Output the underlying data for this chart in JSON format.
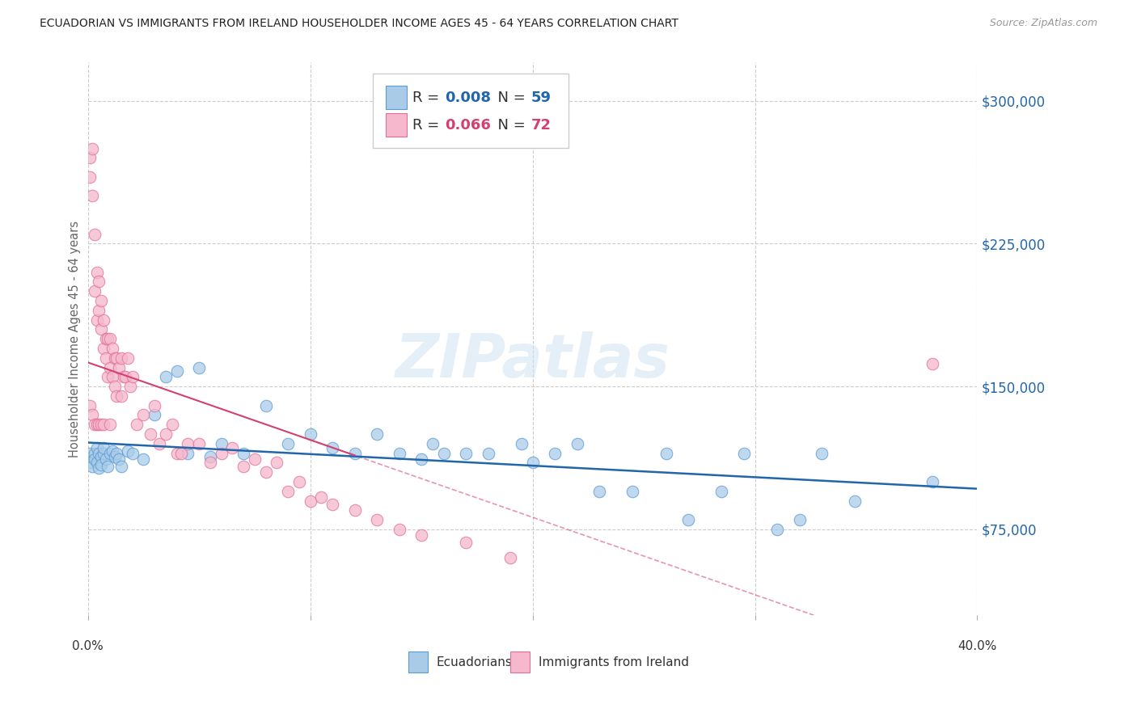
{
  "title": "ECUADORIAN VS IMMIGRANTS FROM IRELAND HOUSEHOLDER INCOME AGES 45 - 64 YEARS CORRELATION CHART",
  "source": "Source: ZipAtlas.com",
  "ylabel": "Householder Income Ages 45 - 64 years",
  "yticks": [
    75000,
    150000,
    225000,
    300000
  ],
  "ytick_labels": [
    "$75,000",
    "$150,000",
    "$225,000",
    "$300,000"
  ],
  "xlim": [
    0.0,
    0.4
  ],
  "ylim": [
    30000,
    320000
  ],
  "blue_color": "#aacbe8",
  "blue_edge_color": "#5b9bd5",
  "blue_line_color": "#2166ac",
  "pink_color": "#f5b8cc",
  "pink_edge_color": "#e07098",
  "pink_line_color": "#d44070",
  "blue_R": 0.008,
  "blue_N": 59,
  "pink_R": 0.066,
  "pink_N": 72,
  "legend_label_blue": "Ecuadorians",
  "legend_label_pink": "Immigrants from Ireland",
  "watermark": "ZIPatlas",
  "blue_x": [
    0.001,
    0.001,
    0.002,
    0.003,
    0.003,
    0.004,
    0.004,
    0.005,
    0.005,
    0.006,
    0.006,
    0.007,
    0.007,
    0.008,
    0.009,
    0.01,
    0.011,
    0.012,
    0.013,
    0.014,
    0.015,
    0.018,
    0.02,
    0.025,
    0.03,
    0.035,
    0.04,
    0.045,
    0.05,
    0.055,
    0.06,
    0.07,
    0.08,
    0.09,
    0.1,
    0.11,
    0.12,
    0.13,
    0.14,
    0.15,
    0.155,
    0.16,
    0.17,
    0.18,
    0.195,
    0.2,
    0.21,
    0.22,
    0.23,
    0.245,
    0.26,
    0.27,
    0.285,
    0.295,
    0.31,
    0.32,
    0.33,
    0.345,
    0.38
  ],
  "blue_y": [
    115000,
    110000,
    108000,
    115000,
    112000,
    118000,
    110000,
    115000,
    107000,
    113000,
    109000,
    115000,
    118000,
    112000,
    108000,
    115000,
    116000,
    113000,
    115000,
    112000,
    108000,
    116000,
    115000,
    112000,
    135000,
    155000,
    158000,
    115000,
    160000,
    113000,
    120000,
    115000,
    140000,
    120000,
    125000,
    118000,
    115000,
    125000,
    115000,
    112000,
    120000,
    115000,
    115000,
    115000,
    120000,
    110000,
    115000,
    120000,
    95000,
    95000,
    115000,
    80000,
    95000,
    115000,
    75000,
    80000,
    115000,
    90000,
    100000
  ],
  "pink_x": [
    0.001,
    0.001,
    0.001,
    0.002,
    0.002,
    0.002,
    0.003,
    0.003,
    0.003,
    0.004,
    0.004,
    0.004,
    0.005,
    0.005,
    0.005,
    0.006,
    0.006,
    0.006,
    0.007,
    0.007,
    0.007,
    0.008,
    0.008,
    0.009,
    0.009,
    0.01,
    0.01,
    0.01,
    0.011,
    0.011,
    0.012,
    0.012,
    0.013,
    0.013,
    0.014,
    0.015,
    0.015,
    0.016,
    0.017,
    0.018,
    0.019,
    0.02,
    0.022,
    0.025,
    0.028,
    0.03,
    0.032,
    0.035,
    0.038,
    0.04,
    0.042,
    0.045,
    0.05,
    0.055,
    0.06,
    0.065,
    0.07,
    0.075,
    0.08,
    0.085,
    0.09,
    0.095,
    0.1,
    0.105,
    0.11,
    0.12,
    0.13,
    0.14,
    0.15,
    0.17,
    0.19,
    0.38
  ],
  "pink_y": [
    270000,
    260000,
    140000,
    275000,
    250000,
    135000,
    230000,
    200000,
    130000,
    210000,
    185000,
    130000,
    205000,
    190000,
    130000,
    195000,
    180000,
    130000,
    185000,
    170000,
    130000,
    175000,
    165000,
    175000,
    155000,
    175000,
    160000,
    130000,
    170000,
    155000,
    165000,
    150000,
    165000,
    145000,
    160000,
    165000,
    145000,
    155000,
    155000,
    165000,
    150000,
    155000,
    130000,
    135000,
    125000,
    140000,
    120000,
    125000,
    130000,
    115000,
    115000,
    120000,
    120000,
    110000,
    115000,
    118000,
    108000,
    112000,
    105000,
    110000,
    95000,
    100000,
    90000,
    92000,
    88000,
    85000,
    80000,
    75000,
    72000,
    68000,
    60000,
    162000
  ]
}
